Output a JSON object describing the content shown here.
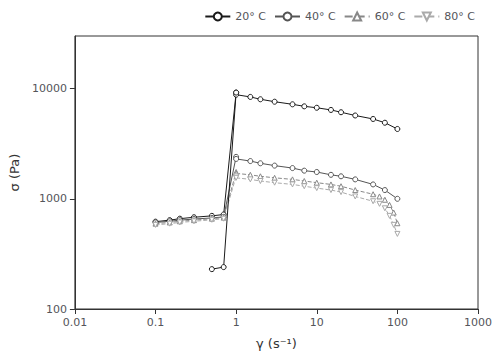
{
  "chart_data": {
    "type": "line",
    "xlabel": "γ (s⁻¹)",
    "ylabel": "σ (Pa)",
    "log": true,
    "xlim": [
      0.01,
      1000
    ],
    "ylim": [
      100,
      30000
    ],
    "xticks": [
      0.01,
      0.1,
      1,
      10,
      100,
      1000
    ],
    "yticks": [
      100,
      1000,
      10000
    ],
    "grid": false,
    "legend": "upper right",
    "series": [
      {
        "name": "20° C",
        "color": "#1a1a1a",
        "line_style": "solid",
        "marker": "circle",
        "x": [
          0.1,
          0.15,
          0.2,
          0.3,
          0.5,
          0.7,
          1.0
        ],
        "values": [
          620,
          640,
          660,
          680,
          700,
          720,
          9200
        ]
      },
      {
        "color": "#1a1a1a",
        "line_style": "solid",
        "marker": "circle",
        "x": [
          1.0,
          1.5,
          2,
          3,
          5,
          7,
          10,
          15,
          20,
          30,
          50,
          70,
          100
        ],
        "values": [
          8800,
          8400,
          8000,
          7600,
          7200,
          6900,
          6700,
          6400,
          6100,
          5700,
          5300,
          4900,
          4300
        ]
      },
      {
        "name": "40° C",
        "color": "#555555",
        "line_style": "solid",
        "marker": "circle",
        "x": [
          0.1,
          0.15,
          0.2,
          0.3,
          0.5,
          0.7,
          1.0
        ],
        "values": [
          610,
          625,
          640,
          655,
          670,
          685,
          2400
        ]
      },
      {
        "color": "#555555",
        "line_style": "solid",
        "marker": "circle",
        "x": [
          1.0,
          1.5,
          2,
          3,
          5,
          7,
          10,
          15,
          20,
          30,
          50,
          70,
          100
        ],
        "values": [
          2300,
          2200,
          2100,
          2000,
          1900,
          1800,
          1750,
          1650,
          1600,
          1500,
          1350,
          1200,
          1000
        ]
      },
      {
        "name": "60° C",
        "color": "#888888",
        "line_style": "dashed",
        "marker": "triangle",
        "x": [
          0.1,
          0.15,
          0.2,
          0.3,
          0.5,
          0.7,
          1.0
        ],
        "values": [
          595,
          610,
          625,
          640,
          660,
          675,
          1750
        ]
      },
      {
        "color": "#888888",
        "line_style": "dashed",
        "marker": "triangle",
        "x": [
          1.0,
          1.5,
          2,
          3,
          5,
          7,
          10,
          15,
          20,
          30,
          50,
          60,
          70,
          80,
          90,
          100
        ],
        "values": [
          1700,
          1650,
          1600,
          1550,
          1500,
          1450,
          1400,
          1350,
          1300,
          1200,
          1100,
          1050,
          980,
          880,
          750,
          600
        ]
      },
      {
        "name": "80° C",
        "color": "#aaaaaa",
        "line_style": "dashed",
        "marker": "triangle-down",
        "x": [
          0.1,
          0.15,
          0.2,
          0.3,
          0.5,
          0.7,
          1.0
        ],
        "values": [
          580,
          595,
          610,
          625,
          645,
          660,
          1600
        ]
      },
      {
        "color": "#aaaaaa",
        "line_style": "dashed",
        "marker": "triangle-down",
        "x": [
          1.0,
          1.5,
          2,
          3,
          5,
          7,
          10,
          15,
          20,
          30,
          50,
          60,
          70,
          80,
          90,
          100
        ],
        "values": [
          1550,
          1500,
          1450,
          1400,
          1350,
          1300,
          1250,
          1200,
          1150,
          1050,
          950,
          900,
          820,
          700,
          580,
          480
        ]
      },
      {
        "color": "#1a1a1a",
        "line_style": "solid",
        "marker": "circle",
        "x": [
          0.5,
          0.7,
          1.0
        ],
        "values": [
          230,
          240,
          9200
        ]
      }
    ]
  }
}
